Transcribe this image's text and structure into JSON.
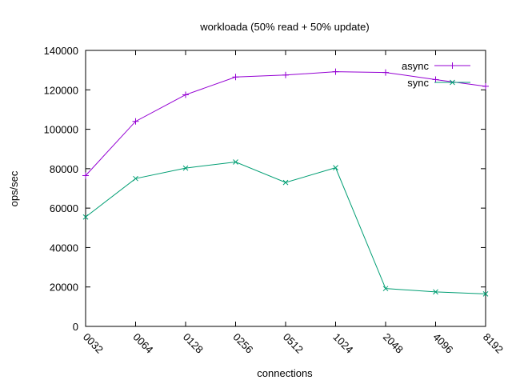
{
  "chart_data": {
    "type": "line",
    "title": "workloada (50% read + 50% update)",
    "xlabel": "connections",
    "ylabel": "ops/sec",
    "categories": [
      "0032",
      "0064",
      "0128",
      "0256",
      "0512",
      "1024",
      "2048",
      "4096",
      "8192"
    ],
    "ylim": [
      0,
      140000
    ],
    "yticks": [
      0,
      20000,
      40000,
      60000,
      80000,
      100000,
      120000,
      140000
    ],
    "grid": false,
    "legend_position": "top-right",
    "series": [
      {
        "name": "async",
        "color": "#9400d3",
        "marker": "plus",
        "values": [
          76500,
          104000,
          117500,
          126500,
          127500,
          129200,
          128800,
          125200,
          121800
        ]
      },
      {
        "name": "sync",
        "color": "#009e73",
        "marker": "cross",
        "values": [
          55500,
          75000,
          80300,
          83400,
          73000,
          80500,
          19200,
          17500,
          16500
        ]
      }
    ]
  }
}
